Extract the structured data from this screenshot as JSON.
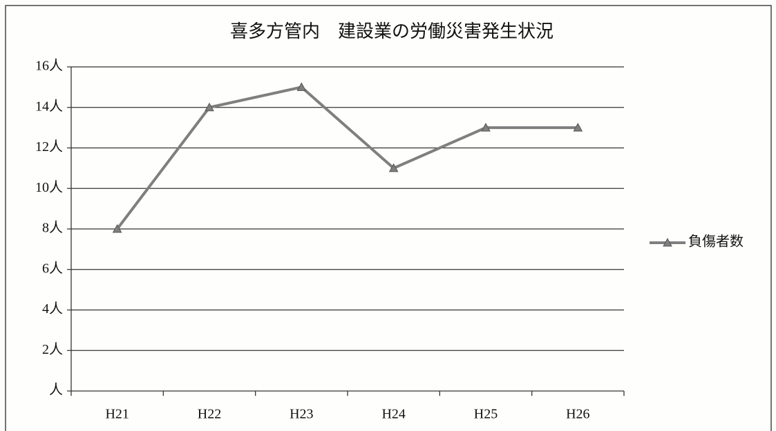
{
  "chart_data": {
    "type": "line",
    "title": "喜多方管内　建設業の労働災害発生状況",
    "categories": [
      "H21",
      "H22",
      "H23",
      "H24",
      "H25",
      "H26"
    ],
    "series": [
      {
        "name": "負傷者数",
        "color": "#7f7f7f",
        "values": [
          8,
          14,
          15,
          11,
          13,
          13
        ]
      }
    ],
    "ylim": [
      0,
      16
    ],
    "yticks": [
      {
        "value": 0,
        "label": "人"
      },
      {
        "value": 2,
        "label": "2人"
      },
      {
        "value": 4,
        "label": "4人"
      },
      {
        "value": 6,
        "label": "6人"
      },
      {
        "value": 8,
        "label": "8人"
      },
      {
        "value": 10,
        "label": "10人"
      },
      {
        "value": 12,
        "label": "12人"
      },
      {
        "value": 14,
        "label": "14人"
      },
      {
        "value": 16,
        "label": "16人"
      }
    ],
    "grid": true,
    "legend": "right"
  }
}
